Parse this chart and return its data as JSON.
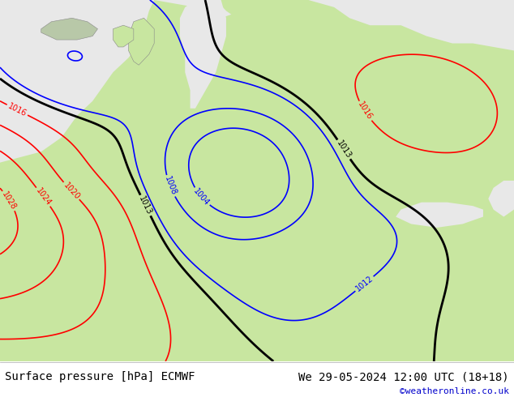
{
  "title_left": "Surface pressure [hPa] ECMWF",
  "title_right": "We 29-05-2024 12:00 UTC (18+18)",
  "watermark": "©weatheronline.co.uk",
  "fig_width": 6.34,
  "fig_height": 4.9,
  "dpi": 100,
  "bg_ocean": "#e8e8e8",
  "bg_land": "#c8e6a0",
  "bg_land2": "#b8d890",
  "bottom_text_color": "#000000",
  "watermark_color": "#0000cc",
  "font_size_bottom": 10,
  "font_size_watermark": 8,
  "contour_lw_black": 2.0,
  "contour_lw_colored": 1.2,
  "label_fontsize": 7
}
